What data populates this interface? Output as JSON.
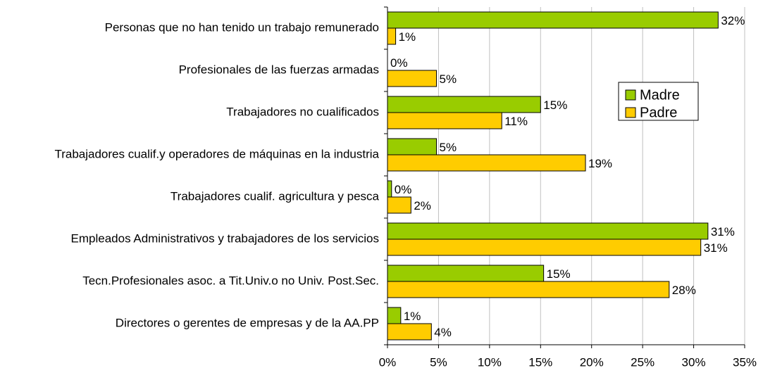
{
  "chart_data": {
    "type": "hbar",
    "categories": [
      "Personas que no han tenido un trabajo remunerado",
      "Profesionales de las fuerzas armadas",
      "Trabajadores no cualificados",
      "Trabajadores cualif.y operadores de máquinas en la industria",
      "Trabajadores cualif. agricultura y pesca",
      "Empleados Administrativos y trabajadores de los servicios",
      "Tecn.Profesionales asoc. a Tit.Univ.o no Univ. Post.Sec.",
      "Directores o gerentes de empresas y de la AA.PP"
    ],
    "series": [
      {
        "name": "Madre",
        "color": "#99cc00",
        "label_color": "#339900",
        "values": [
          32.4,
          0,
          15.0,
          4.8,
          0.4,
          31.4,
          15.3,
          1.3
        ],
        "value_labels": [
          "32%",
          "0%",
          "15%",
          "5%",
          "0%",
          "31%",
          "15%",
          "1%"
        ]
      },
      {
        "name": "Padre",
        "color": "#ffcc00",
        "label_color": "#000000",
        "values": [
          0.8,
          4.8,
          11.2,
          19.4,
          2.3,
          30.7,
          27.6,
          4.3
        ],
        "value_labels": [
          "1%",
          "5%",
          "11%",
          "19%",
          "2%",
          "31%",
          "28%",
          "4%"
        ]
      }
    ],
    "xlim": [
      0,
      35
    ],
    "xticks": [
      {
        "value": 0,
        "label": "0%"
      },
      {
        "value": 5,
        "label": "5%"
      },
      {
        "value": 10,
        "label": "10%"
      },
      {
        "value": 15,
        "label": "15%"
      },
      {
        "value": 20,
        "label": "20%"
      },
      {
        "value": 25,
        "label": "25%"
      },
      {
        "value": 30,
        "label": "30%"
      },
      {
        "value": 35,
        "label": "35%"
      }
    ],
    "grid": true,
    "legend": "right"
  }
}
